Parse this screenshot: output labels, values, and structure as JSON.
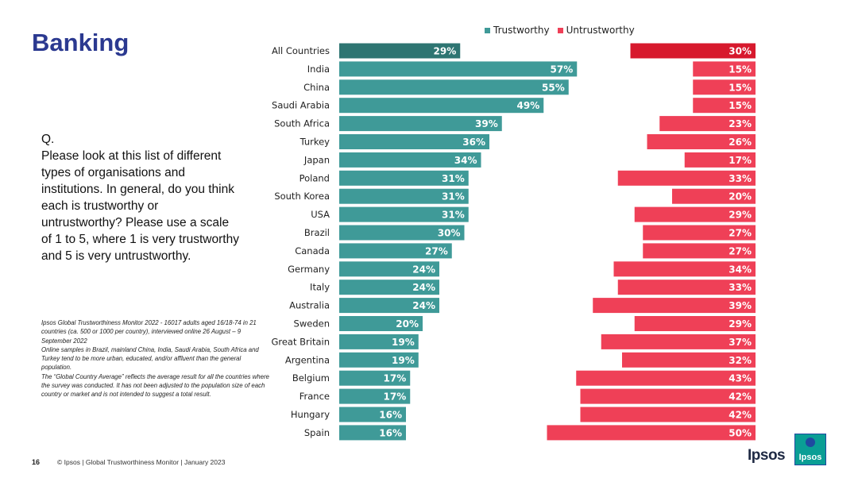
{
  "slide": {
    "title": "Banking",
    "question_label": "Q.",
    "question_text": "Please look at this list of different types of organisations and institutions. In general, do you think each is trustworthy or untrustworthy? Please use a scale of 1 to 5, where 1 is very trustworthy and 5 is very untrustworthy.",
    "notes": [
      "Ipsos Global Trustworthiness Monitor 2022 - 16017 adults aged 16/18-74 in 21 countries (ca. 500 or 1000 per country), interviewed online 26 August – 9 September 2022",
      "Online samples in Brazil, mainland China, India, Saudi Arabia, South Africa and Turkey tend to be more urban, educated, and/or affluent than the general population.",
      "The “Global Country Average” reflects the average result for all the countries where the survey was conducted. It has not been adjusted to the population size of each country or market and is not intended to suggest a total result."
    ],
    "page_number": "16",
    "footer": "© Ipsos | Global Trustworthiness Monitor | January 2023",
    "brand": "Ipsos",
    "logo_text": "Ipsos"
  },
  "colors": {
    "trust": "#3f9a98",
    "trust_highlight": "#2e7572",
    "untrust": "#ef4057",
    "untrust_highlight": "#d7192d",
    "title": "#2b3990"
  },
  "chart_data": {
    "type": "bar",
    "orientation": "horizontal",
    "title": "Banking",
    "categories": [
      "All Countries",
      "India",
      "China",
      "Saudi Arabia",
      "South Africa",
      "Turkey",
      "Japan",
      "Poland",
      "South Korea",
      "USA",
      "Brazil",
      "Canada",
      "Germany",
      "Italy",
      "Australia",
      "Sweden",
      "Great Britain",
      "Argentina",
      "Belgium",
      "France",
      "Hungary",
      "Spain"
    ],
    "series": [
      {
        "name": "Trustworthy",
        "values": [
          29,
          57,
          55,
          49,
          39,
          36,
          34,
          31,
          31,
          31,
          30,
          27,
          24,
          24,
          24,
          20,
          19,
          19,
          17,
          17,
          16,
          16
        ]
      },
      {
        "name": "Untrustworthy",
        "values": [
          30,
          15,
          15,
          15,
          23,
          26,
          17,
          33,
          20,
          29,
          27,
          27,
          34,
          33,
          39,
          29,
          37,
          32,
          43,
          42,
          42,
          50
        ]
      }
    ],
    "value_suffix": "%",
    "highlight_category": "All Countries",
    "legend_position": "top",
    "grid": false
  }
}
